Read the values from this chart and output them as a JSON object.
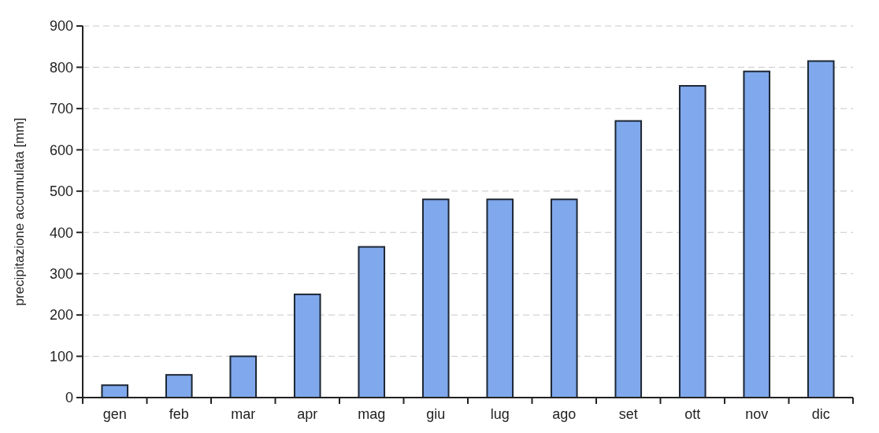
{
  "chart_data": {
    "type": "bar",
    "ylabel": "precipitazione accumulata [mm]",
    "categories": [
      "gen",
      "feb",
      "mar",
      "apr",
      "mag",
      "giu",
      "lug",
      "ago",
      "set",
      "ott",
      "nov",
      "dic"
    ],
    "values": [
      30,
      55,
      100,
      250,
      365,
      480,
      480,
      480,
      670,
      755,
      790,
      815
    ],
    "color": "#80a8ec",
    "ylim": [
      0,
      900
    ],
    "yticks": [
      0,
      100,
      200,
      300,
      400,
      500,
      600,
      700,
      800,
      900
    ],
    "grid": "y"
  }
}
